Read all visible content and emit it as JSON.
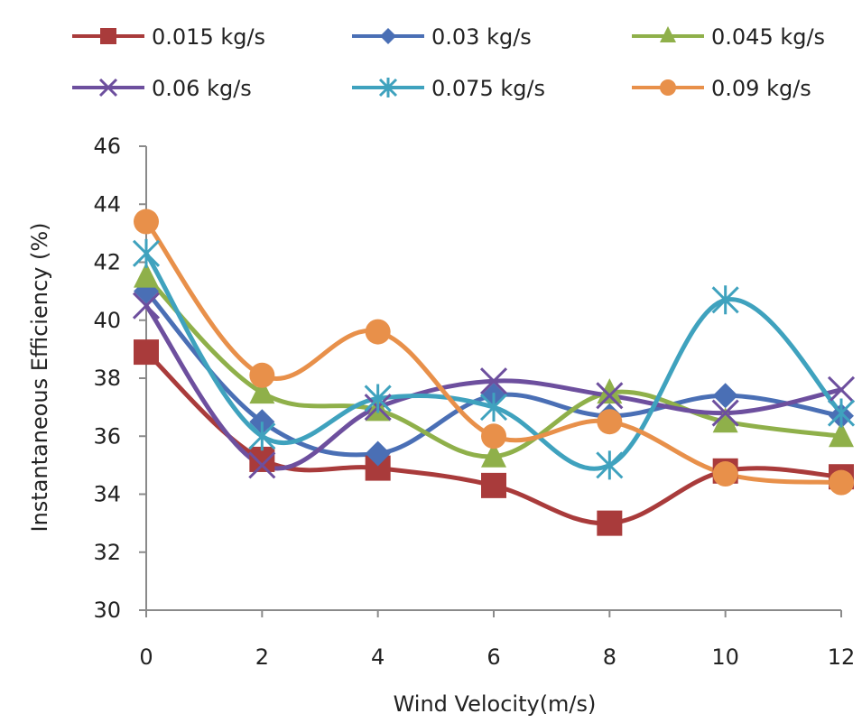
{
  "chart_data": {
    "type": "line",
    "title": "",
    "xlabel": "Wind Velocity(m/s)",
    "ylabel": "Instantaneous Efficiency (%)",
    "x": [
      0,
      2,
      4,
      6,
      8,
      10,
      12
    ],
    "x_ticks": [
      "0",
      "2",
      "4",
      "6",
      "8",
      "10",
      "12"
    ],
    "y_ticks": [
      "30",
      "32",
      "34",
      "36",
      "38",
      "40",
      "42",
      "44",
      "46"
    ],
    "ylim": [
      30,
      46
    ],
    "grid": false,
    "legend_position": "top",
    "smooth": true,
    "series": [
      {
        "name": "0.015 kg/s",
        "color": "#A93B3B",
        "marker": "square",
        "values": [
          38.9,
          35.2,
          34.9,
          34.3,
          33.0,
          34.8,
          34.6
        ]
      },
      {
        "name": "0.03 kg/s",
        "color": "#4A6FB5",
        "marker": "diamond",
        "values": [
          41.0,
          36.5,
          35.4,
          37.4,
          36.7,
          37.4,
          36.7
        ]
      },
      {
        "name": "0.045 kg/s",
        "color": "#8FB04A",
        "marker": "triangle",
        "values": [
          41.5,
          37.5,
          36.9,
          35.3,
          37.5,
          36.5,
          36.0
        ]
      },
      {
        "name": "0.06 kg/s",
        "color": "#6D4F9E",
        "marker": "x",
        "values": [
          40.5,
          35.0,
          37.0,
          37.9,
          37.4,
          36.8,
          37.6
        ]
      },
      {
        "name": "0.075 kg/s",
        "color": "#3FA2BE",
        "marker": "star",
        "values": [
          42.3,
          36.0,
          37.3,
          37.0,
          35.0,
          40.7,
          36.8
        ]
      },
      {
        "name": "0.09 kg/s",
        "color": "#E8904A",
        "marker": "circle",
        "values": [
          43.4,
          38.1,
          39.6,
          36.0,
          36.5,
          34.7,
          34.4
        ]
      }
    ]
  }
}
